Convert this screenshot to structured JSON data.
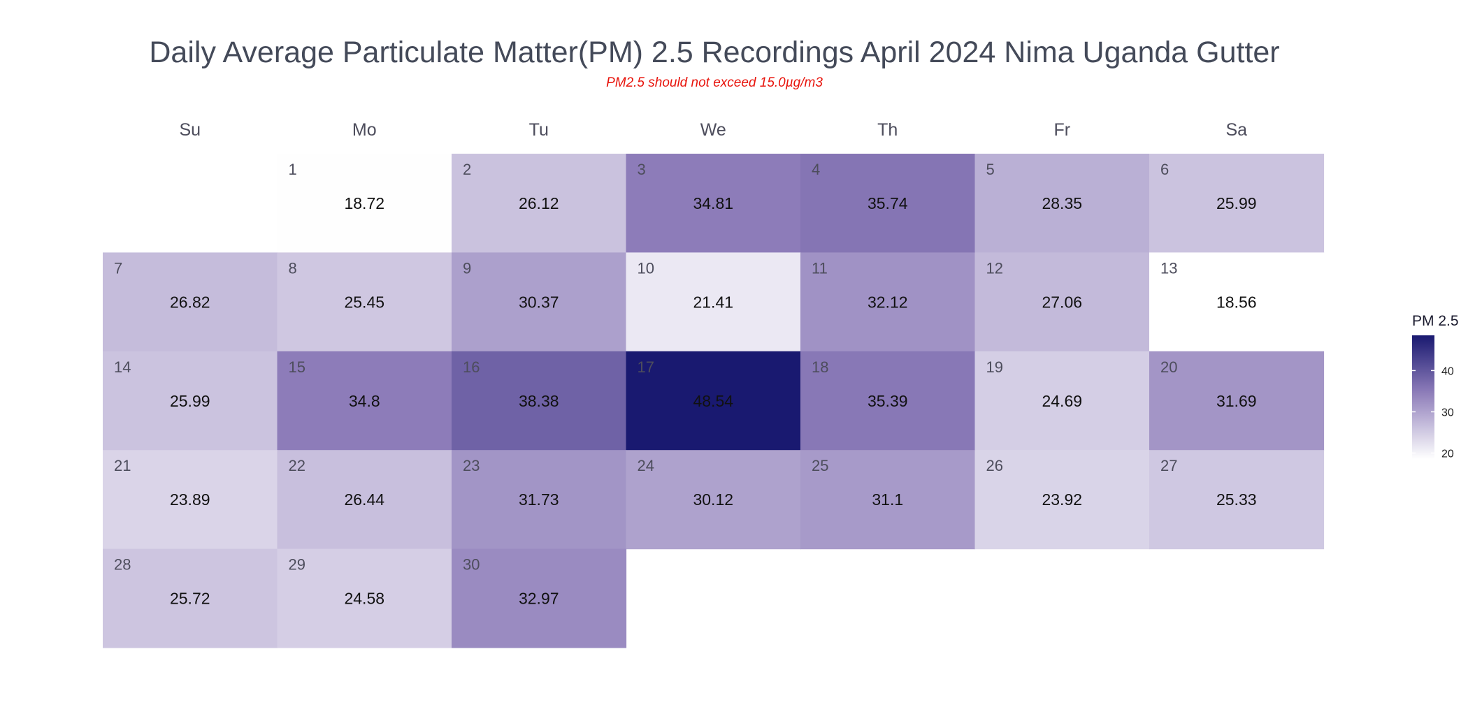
{
  "chart_data": {
    "type": "heatmap",
    "title": "Daily Average Particulate Matter(PM) 2.5 Recordings April 2024 Nima Uganda Gutter",
    "subtitle": "PM2.5 should not exceed 15.0µg/m3",
    "weekdays": [
      "Su",
      "Mo",
      "Tu",
      "We",
      "Th",
      "Fr",
      "Sa"
    ],
    "first_weekday_index": 1,
    "days": [
      {
        "day": "1",
        "value": 18.72,
        "label": "18.72"
      },
      {
        "day": "2",
        "value": 26.12,
        "label": "26.12"
      },
      {
        "day": "3",
        "value": 34.81,
        "label": "34.81"
      },
      {
        "day": "4",
        "value": 35.74,
        "label": "35.74"
      },
      {
        "day": "5",
        "value": 28.35,
        "label": "28.35"
      },
      {
        "day": "6",
        "value": 25.99,
        "label": "25.99"
      },
      {
        "day": "7",
        "value": 26.82,
        "label": "26.82"
      },
      {
        "day": "8",
        "value": 25.45,
        "label": "25.45"
      },
      {
        "day": "9",
        "value": 30.37,
        "label": "30.37"
      },
      {
        "day": "10",
        "value": 21.41,
        "label": "21.41"
      },
      {
        "day": "11",
        "value": 32.12,
        "label": "32.12"
      },
      {
        "day": "12",
        "value": 27.06,
        "label": "27.06"
      },
      {
        "day": "13",
        "value": 18.56,
        "label": "18.56"
      },
      {
        "day": "14",
        "value": 25.99,
        "label": "25.99"
      },
      {
        "day": "15",
        "value": 34.8,
        "label": "34.8"
      },
      {
        "day": "16",
        "value": 38.38,
        "label": "38.38"
      },
      {
        "day": "17",
        "value": 48.54,
        "label": "48.54"
      },
      {
        "day": "18",
        "value": 35.39,
        "label": "35.39"
      },
      {
        "day": "19",
        "value": 24.69,
        "label": "24.69"
      },
      {
        "day": "20",
        "value": 31.69,
        "label": "31.69"
      },
      {
        "day": "21",
        "value": 23.89,
        "label": "23.89"
      },
      {
        "day": "22",
        "value": 26.44,
        "label": "26.44"
      },
      {
        "day": "23",
        "value": 31.73,
        "label": "31.73"
      },
      {
        "day": "24",
        "value": 30.12,
        "label": "30.12"
      },
      {
        "day": "25",
        "value": 31.1,
        "label": "31.1"
      },
      {
        "day": "26",
        "value": 23.92,
        "label": "23.92"
      },
      {
        "day": "27",
        "value": 25.33,
        "label": "25.33"
      },
      {
        "day": "28",
        "value": 25.72,
        "label": "25.72"
      },
      {
        "day": "29",
        "value": 24.58,
        "label": "24.58"
      },
      {
        "day": "30",
        "value": 32.97,
        "label": "32.97"
      }
    ],
    "legend": {
      "title": "PM 2.5",
      "placement": "right",
      "min": 18.56,
      "max": 48.54,
      "ticks": [
        {
          "value": 20,
          "label": "20"
        },
        {
          "value": 30,
          "label": "30"
        },
        {
          "value": 40,
          "label": "40"
        }
      ]
    },
    "colors": {
      "low": "#ffffff",
      "mid": "#8b7ab8",
      "high": "#191970"
    },
    "grid": false
  }
}
